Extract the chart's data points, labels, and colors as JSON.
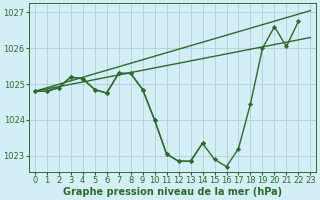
{
  "title": "Graphe pression niveau de la mer (hPa)",
  "background_color": "#d4eef5",
  "grid_color": "#aac8d4",
  "line_color": "#2d6b2d",
  "marker_color": "#2d6b2d",
  "ylim": [
    1022.55,
    1027.25
  ],
  "yticks": [
    1023,
    1024,
    1025,
    1026,
    1027
  ],
  "xlim": [
    -0.5,
    23.5
  ],
  "xticks": [
    0,
    1,
    2,
    3,
    4,
    5,
    6,
    7,
    8,
    9,
    10,
    11,
    12,
    13,
    14,
    15,
    16,
    17,
    18,
    19,
    20,
    21,
    22,
    23
  ],
  "series": [
    {
      "x": [
        0,
        1,
        2,
        3,
        4,
        5,
        6,
        7,
        8,
        9,
        10,
        11,
        12,
        13,
        14,
        15,
        16,
        17,
        18,
        19,
        20,
        21,
        22,
        23
      ],
      "y": [
        1024.8,
        1024.8,
        1024.9,
        1025.2,
        1025.15,
        1024.85,
        1024.75,
        1025.3,
        1025.3,
        1024.85,
        1024.0,
        1023.05,
        1022.85,
        1022.85,
        1023.35,
        1022.9,
        1022.7,
        1023.2,
        1024.45,
        1026.0,
        1026.6,
        1026.05,
        1026.75,
        null
      ],
      "marker": true,
      "zorder": 4
    },
    {
      "x": [
        0,
        1,
        2,
        3,
        4,
        5,
        6,
        7,
        8,
        9,
        10,
        11,
        12,
        13,
        14
      ],
      "y": [
        1024.8,
        1024.8,
        1024.9,
        1025.2,
        1025.15,
        1024.85,
        1024.75,
        1025.3,
        1025.3,
        1024.85,
        1024.0,
        1023.05,
        1022.85,
        1022.85,
        1023.35
      ],
      "marker": true,
      "zorder": 4
    },
    {
      "x": [
        0,
        23
      ],
      "y": [
        1024.8,
        1027.05
      ],
      "marker": false,
      "zorder": 2
    },
    {
      "x": [
        0,
        23
      ],
      "y": [
        1024.8,
        1026.3
      ],
      "marker": false,
      "zorder": 2
    }
  ],
  "marker_size": 2.2,
  "line_width": 1.0,
  "tick_fontsize": 6,
  "title_fontsize": 7
}
